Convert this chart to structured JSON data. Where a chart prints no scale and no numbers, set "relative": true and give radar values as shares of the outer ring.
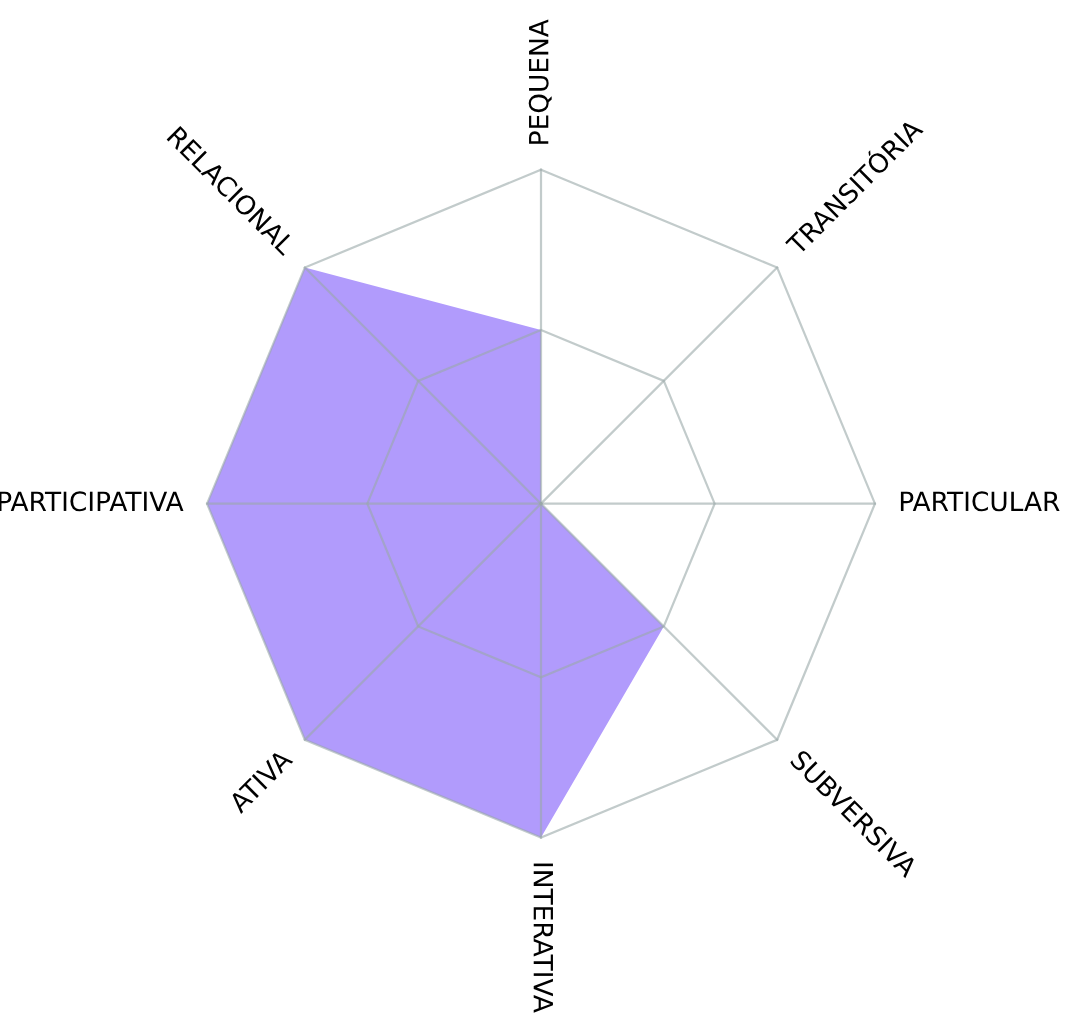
{
  "chart_data": {
    "type": "radar",
    "relative": true,
    "grid": true,
    "categories": [
      "PEQUENA",
      "TRANSITÓRIA",
      "PARTICULAR",
      "SUBVERSIVA",
      "INTERATIVA",
      "ATIVA",
      "PARTICIPATIVA",
      "RELACIONAL"
    ],
    "series": [
      {
        "color": "#b19bfc",
        "values": [
          0.52,
          0,
          0,
          0.52,
          1,
          1,
          1,
          1
        ]
      }
    ]
  }
}
